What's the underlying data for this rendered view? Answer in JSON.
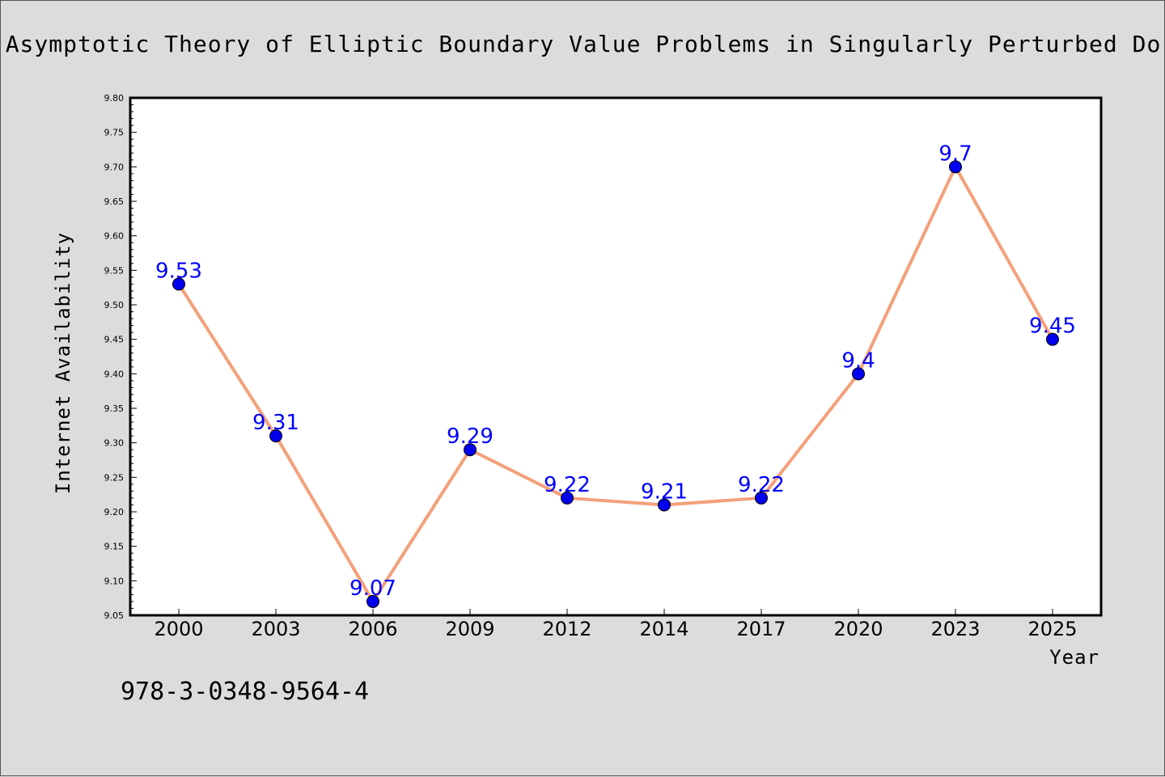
{
  "chart_data": {
    "type": "line",
    "title": "Asymptotic Theory of Elliptic Boundary Value Problems in Singularly Perturbed Do",
    "xlabel": "Year",
    "ylabel": "Internet Availability",
    "categories": [
      "2000",
      "2003",
      "2006",
      "2009",
      "2012",
      "2014",
      "2017",
      "2020",
      "2023",
      "2025"
    ],
    "values": [
      9.53,
      9.31,
      9.07,
      9.29,
      9.22,
      9.21,
      9.22,
      9.4,
      9.7,
      9.45
    ],
    "data_labels": [
      "9.53",
      "9.31",
      "9.07",
      "9.29",
      "9.22",
      "9.21",
      "9.22",
      "9.4",
      "9.7",
      "9.45"
    ],
    "ylim": [
      9.05,
      9.8
    ],
    "yticks": [
      "9.05",
      "9.10",
      "9.15",
      "9.20",
      "9.25",
      "9.30",
      "9.35",
      "9.40",
      "9.45",
      "9.50",
      "9.55",
      "9.60",
      "9.65",
      "9.70",
      "9.75",
      "9.80"
    ],
    "grid": false,
    "legend": "none",
    "line_color": "#f4a07a",
    "marker_color": "#0000ee",
    "label_color": "#0000ff",
    "background_color": "#dcdcdc",
    "plot_background_color": "#ffffff"
  },
  "footer": {
    "isbn": "978-3-0348-9564-4"
  }
}
